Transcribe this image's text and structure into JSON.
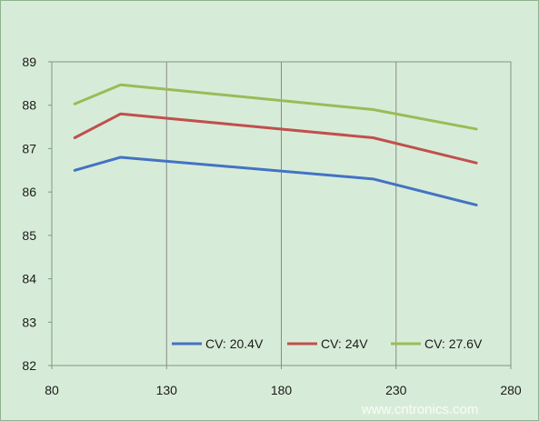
{
  "chart_data": {
    "type": "line",
    "title": "",
    "xlabel": "",
    "ylabel": "",
    "xlim": [
      80,
      280
    ],
    "ylim": [
      82,
      89
    ],
    "x_ticks": [
      80,
      130,
      180,
      230,
      280
    ],
    "y_ticks": [
      82,
      83,
      84,
      85,
      86,
      87,
      88,
      89
    ],
    "grid": "vertical",
    "legend_position": "bottom-right-inside",
    "series": [
      {
        "name": "CV: 20.4V",
        "color": "#4472c4",
        "x": [
          90,
          110,
          220,
          265
        ],
        "y": [
          86.5,
          86.8,
          86.3,
          85.7
        ]
      },
      {
        "name": "CV: 24V",
        "color": "#c0504d",
        "x": [
          90,
          110,
          220,
          265
        ],
        "y": [
          87.25,
          87.8,
          87.25,
          86.67
        ]
      },
      {
        "name": "CV: 27.6V",
        "color": "#9bbb59",
        "x": [
          90,
          110,
          220,
          265
        ],
        "y": [
          88.03,
          88.47,
          87.9,
          87.45
        ]
      }
    ]
  },
  "watermark": "www.cntronics.com"
}
